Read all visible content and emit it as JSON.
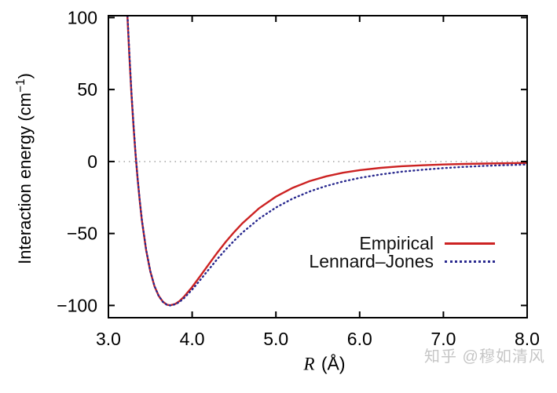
{
  "figure": {
    "background": "#ffffff",
    "frame_color": "#000000",
    "watermark": {
      "text": "知乎 @穆如清风",
      "color": "#c6c6c6"
    }
  },
  "axes": {
    "y": {
      "title_prefix": "Interaction energy (cm",
      "title_sup": "−1",
      "title_suffix": ")"
    },
    "x": {
      "title_symbol": "R",
      "title_unit": " (Å)"
    }
  },
  "legend": {
    "items": [
      {
        "label": "Empirical",
        "color": "#cc2222",
        "line_style": "solid"
      },
      {
        "label": "Lennard–Jones",
        "color": "#2a2a8f",
        "line_style": "dotted"
      }
    ]
  },
  "chart_data": {
    "type": "line",
    "title": "",
    "xlabel": "R (Å)",
    "ylabel": "Interaction energy (cm⁻¹)",
    "xlim": [
      3.0,
      8.0
    ],
    "ylim": [
      -108.5,
      101.3
    ],
    "grid": "zero-reference-line-only",
    "mirror_ticks": true,
    "legend_position": "inside-lower-right",
    "x_ticks": [
      {
        "v": 3,
        "label": "3.0"
      },
      {
        "v": 4,
        "label": "4.0"
      },
      {
        "v": 5,
        "label": "5.0"
      },
      {
        "v": 6,
        "label": "6.0"
      },
      {
        "v": 7,
        "label": "7.0"
      },
      {
        "v": 8,
        "label": "8.0"
      }
    ],
    "y_ticks": [
      {
        "v": 100,
        "label": "100"
      },
      {
        "v": 50,
        "label": "50"
      },
      {
        "v": 0,
        "label": "0"
      },
      {
        "v": -50,
        "label": "−50"
      },
      {
        "v": -100,
        "label": "−100"
      }
    ],
    "reference_line": {
      "y": 0,
      "color": "#999999",
      "style": "dotted"
    },
    "series": [
      {
        "name": "Empirical",
        "color": "#cc2222",
        "style": "solid",
        "x": [
          3.19,
          3.2,
          3.225,
          3.25,
          3.275,
          3.3,
          3.325,
          3.35,
          3.375,
          3.4,
          3.45,
          3.5,
          3.55,
          3.6,
          3.65,
          3.7,
          3.74,
          3.8,
          3.85,
          3.9,
          4.0,
          4.1,
          4.2,
          4.3,
          4.4,
          4.5,
          4.6,
          4.8,
          5.0,
          5.2,
          5.4,
          5.6,
          5.8,
          6.0,
          6.25,
          6.5,
          6.75,
          7.0,
          7.25,
          7.5,
          7.75,
          8.0
        ],
        "y": [
          152,
          138,
          103,
          73,
          47,
          24,
          4.5,
          -12.8,
          -28,
          -41,
          -61.5,
          -76.3,
          -86.6,
          -93.3,
          -97.4,
          -99.5,
          -99.9,
          -98.9,
          -96.9,
          -94.1,
          -87.2,
          -79.3,
          -71.3,
          -63.3,
          -55.9,
          -49.1,
          -42.9,
          -32.4,
          -24.4,
          -18.3,
          -13.7,
          -10.3,
          -7.8,
          -6.0,
          -4.4,
          -3.3,
          -2.6,
          -2.1,
          -1.7,
          -1.4,
          -1.2,
          -1.0
        ]
      },
      {
        "name": "Lennard-Jones",
        "color": "#2a2a8f",
        "style": "dotted",
        "x": [
          3.19,
          3.2,
          3.225,
          3.25,
          3.275,
          3.3,
          3.325,
          3.35,
          3.375,
          3.4,
          3.45,
          3.5,
          3.55,
          3.6,
          3.65,
          3.7,
          3.74,
          3.8,
          3.85,
          3.9,
          4.0,
          4.1,
          4.2,
          4.3,
          4.4,
          4.5,
          4.6,
          4.8,
          5.0,
          5.2,
          5.4,
          5.6,
          5.8,
          6.0,
          6.25,
          6.5,
          6.75,
          7.0,
          7.25,
          7.5,
          7.75,
          8.0
        ],
        "y": [
          155,
          140,
          105.2,
          74.9,
          48.3,
          25.2,
          5.1,
          -12.3,
          -27.4,
          -40.5,
          -61.2,
          -76.1,
          -86.5,
          -93.4,
          -97.5,
          -99.6,
          -100,
          -99.2,
          -97.5,
          -95.1,
          -89.0,
          -82.0,
          -74.9,
          -67.8,
          -61.2,
          -55.1,
          -49.4,
          -39.7,
          -32.0,
          -25.8,
          -20.9,
          -17.0,
          -13.9,
          -11.4,
          -9.0,
          -7.1,
          -5.7,
          -4.6,
          -3.7,
          -3.0,
          -2.5,
          -2.1
        ]
      }
    ]
  }
}
